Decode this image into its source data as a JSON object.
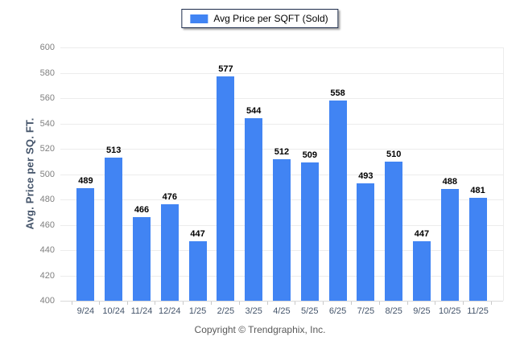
{
  "legend": {
    "label": "Avg Price per SQFT (Sold)",
    "swatch_color": "#4184F3"
  },
  "y_axis": {
    "title": "Avg. Price per SQ. FT."
  },
  "footer": {
    "text": "Copyright © Trendgraphix, Inc."
  },
  "colors": {
    "bar": "#4184F3",
    "gridline": "#ececec",
    "baseline": "#d9d9d9",
    "y_tick_text": "#808080",
    "x_tick_text": "#44546a",
    "value_label_text": "#000000",
    "axis_title_text": "#44546a",
    "footer_text": "#595959",
    "legend_border": "#1c2b4a"
  },
  "chart_data": {
    "type": "bar",
    "title": "Avg Price per SQFT (Sold)",
    "categories": [
      "9/24",
      "10/24",
      "11/24",
      "12/24",
      "1/25",
      "2/25",
      "3/25",
      "4/25",
      "5/25",
      "6/25",
      "7/25",
      "8/25",
      "9/25",
      "10/25",
      "11/25"
    ],
    "values": [
      489,
      513,
      466,
      476,
      447,
      577,
      544,
      512,
      509,
      558,
      493,
      510,
      447,
      488,
      481
    ],
    "xlabel": "",
    "ylabel": "Avg. Price per SQ. FT.",
    "ylim": [
      400,
      600
    ],
    "ytick_step": 20,
    "yticks": [
      400,
      420,
      440,
      460,
      480,
      500,
      520,
      540,
      560,
      580,
      600
    ],
    "bar_color": "#4184F3",
    "grid": true,
    "legend_position": "top-center",
    "value_labels": true
  }
}
